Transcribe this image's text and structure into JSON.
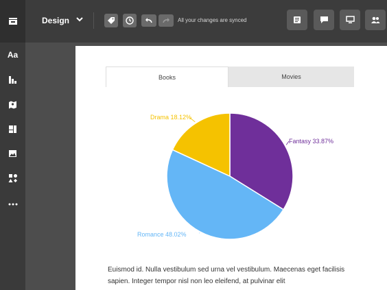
{
  "toolbar": {
    "design_label": "Design",
    "sync_status": "All your changes are synced",
    "left_icons": [
      "tag-icon",
      "clock-icon",
      "undo-icon",
      "redo-icon"
    ],
    "right_icons": [
      "notes-icon",
      "comment-icon",
      "monitor-icon",
      "users-icon"
    ]
  },
  "sidebar": {
    "items": [
      {
        "name": "text",
        "label": "Aa"
      },
      {
        "name": "charts",
        "icon": "bar-chart-icon"
      },
      {
        "name": "maps",
        "icon": "map-icon"
      },
      {
        "name": "layouts",
        "icon": "layout-icon"
      },
      {
        "name": "images",
        "icon": "image-icon"
      },
      {
        "name": "shapes",
        "icon": "shapes-icon"
      },
      {
        "name": "more",
        "icon": "more-icon"
      }
    ]
  },
  "tabs": [
    {
      "label": "Books",
      "active": true
    },
    {
      "label": "Movies",
      "active": false
    }
  ],
  "chart_data": {
    "type": "pie",
    "slices": [
      {
        "label": "Fantasy",
        "value": 33.87,
        "display": "Fantasy 33.87%",
        "color": "#6f2f9a"
      },
      {
        "label": "Romance",
        "value": 48.02,
        "display": "Romance 48.02%",
        "color": "#64b6f6"
      },
      {
        "label": "Drama",
        "value": 18.12,
        "display": "Drama 18.12%",
        "color": "#f5c200"
      }
    ]
  },
  "body_text": "Euismod id. Nulla vestibulum sed urna vel vestibulum. Maecenas eget facilisis sapien. Integer tempor nisl non leo eleifend, at pulvinar elit"
}
